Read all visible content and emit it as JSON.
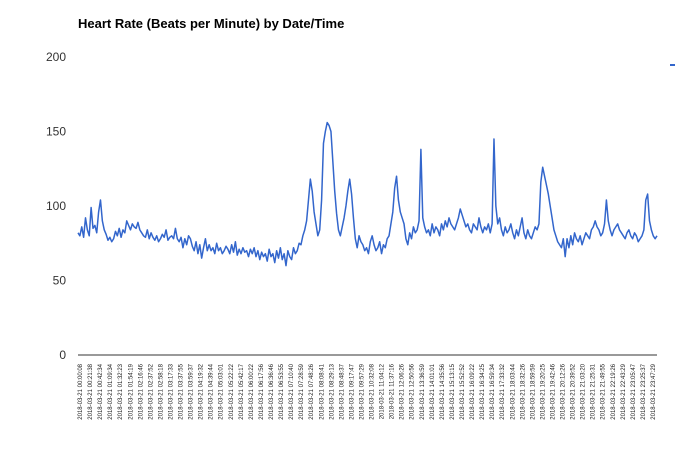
{
  "chart_data": {
    "type": "line",
    "title": "Heart Rate (Beats per Minute) by Date/Time",
    "xlabel": "",
    "ylabel": "",
    "ylim": [
      0,
      200
    ],
    "yticks": [
      0,
      50,
      100,
      150,
      200
    ],
    "grid": false,
    "legend": "right",
    "series_color": "#3366cc",
    "x_tick_labels": [
      "2018-03-21 00:00:08",
      "2018-03-21 00:21:38",
      "2018-03-21 00:42:34",
      "2018-03-21 01:09:34",
      "2018-03-21 01:32:23",
      "2018-03-21 01:54:19",
      "2018-03-21 02:16:46",
      "2018-03-21 02:37:52",
      "2018-03-21 02:58:18",
      "2018-03-21 03:17:33",
      "2018-03-21 03:37:55",
      "2018-03-21 03:59:37",
      "2018-03-21 04:19:32",
      "2018-03-21 04:39:44",
      "2018-03-21 05:03:01",
      "2018-03-21 05:22:22",
      "2018-03-21 05:42:17",
      "2018-03-21 06:00:22",
      "2018-03-21 06:17:56",
      "2018-03-21 06:36:46",
      "2018-03-21 06:53:55",
      "2018-03-21 07:10:40",
      "2018-03-21 07:28:59",
      "2018-03-21 07:48:26",
      "2018-03-21 08:08:41",
      "2018-03-21 08:29:13",
      "2018-03-21 08:48:37",
      "2018-03-21 09:17:47",
      "2018-03-21 09:57:29",
      "2018-03-21 10:32:08",
      "2018-03-21 11:04:12",
      "2018-03-21 11:37:16",
      "2018-03-21 12:06:26",
      "2018-03-21 12:50:56",
      "2018-03-21 13:36:59",
      "2018-03-21 14:01:01",
      "2018-03-21 14:35:56",
      "2018-03-21 15:13:15",
      "2018-03-21 15:52:52",
      "2018-03-21 16:09:22",
      "2018-03-21 16:34:25",
      "2018-03-21 16:59:34",
      "2018-03-21 17:33:32",
      "2018-03-21 18:03:44",
      "2018-03-21 18:32:26",
      "2018-03-21 18:59:59",
      "2018-03-21 19:20:25",
      "2018-03-21 19:42:46",
      "2018-03-21 20:12:26",
      "2018-03-21 20:39:52",
      "2018-03-21 21:03:20",
      "2018-03-21 21:25:31",
      "2018-03-21 21:49:55",
      "2018-03-21 22:19:26",
      "2018-03-21 22:43:29",
      "2018-03-21 23:05:47",
      "2018-03-21 23:25:37",
      "2018-03-21 23:47:29"
    ],
    "series": [
      {
        "values": [
          82,
          80,
          86,
          79,
          92,
          84,
          80,
          99,
          85,
          87,
          82,
          96,
          104,
          90,
          84,
          81,
          77,
          79,
          76,
          78,
          83,
          80,
          85,
          79,
          84,
          82,
          90,
          87,
          84,
          88,
          86,
          85,
          89,
          84,
          82,
          80,
          79,
          84,
          78,
          82,
          79,
          77,
          80,
          76,
          78,
          81,
          79,
          84,
          77,
          79,
          80,
          78,
          85,
          78,
          76,
          79,
          72,
          78,
          74,
          80,
          78,
          73,
          70,
          76,
          68,
          74,
          65,
          72,
          78,
          70,
          74,
          70,
          72,
          68,
          75,
          70,
          72,
          68,
          70,
          73,
          71,
          68,
          74,
          69,
          76,
          67,
          71,
          68,
          72,
          69,
          70,
          66,
          71,
          68,
          72,
          66,
          70,
          64,
          69,
          66,
          68,
          63,
          71,
          66,
          68,
          62,
          70,
          65,
          72,
          64,
          68,
          60,
          70,
          66,
          64,
          72,
          68,
          70,
          75,
          74,
          80,
          84,
          90,
          104,
          118,
          110,
          96,
          88,
          80,
          84,
          104,
          142,
          150,
          156,
          154,
          150,
          130,
          110,
          95,
          84,
          80,
          86,
          92,
          100,
          110,
          118,
          108,
          92,
          78,
          72,
          80,
          76,
          74,
          70,
          72,
          68,
          76,
          80,
          74,
          70,
          72,
          76,
          68,
          74,
          72,
          78,
          80,
          88,
          96,
          112,
          120,
          104,
          96,
          92,
          88,
          78,
          74,
          82,
          78,
          86,
          82,
          84,
          90,
          138,
          92,
          86,
          82,
          84,
          80,
          88,
          82,
          86,
          84,
          80,
          88,
          84,
          90,
          86,
          92,
          88,
          86,
          84,
          88,
          92,
          98,
          94,
          90,
          86,
          88,
          84,
          82,
          88,
          86,
          84,
          92,
          86,
          82,
          86,
          84,
          88,
          82,
          88,
          145,
          100,
          88,
          92,
          84,
          80,
          86,
          82,
          84,
          88,
          82,
          78,
          84,
          80,
          86,
          92,
          82,
          78,
          84,
          80,
          78,
          82,
          86,
          84,
          88,
          116,
          126,
          120,
          114,
          108,
          100,
          92,
          84,
          80,
          76,
          74,
          72,
          78,
          66,
          78,
          72,
          80,
          74,
          82,
          78,
          76,
          80,
          74,
          78,
          82,
          80,
          78,
          84,
          86,
          90,
          86,
          84,
          80,
          82,
          88,
          104,
          90,
          84,
          80,
          84,
          86,
          88,
          84,
          82,
          80,
          78,
          82,
          84,
          80,
          78,
          82,
          80,
          76,
          78,
          80,
          84,
          104,
          108,
          90,
          84,
          80,
          78,
          80
        ]
      }
    ]
  }
}
